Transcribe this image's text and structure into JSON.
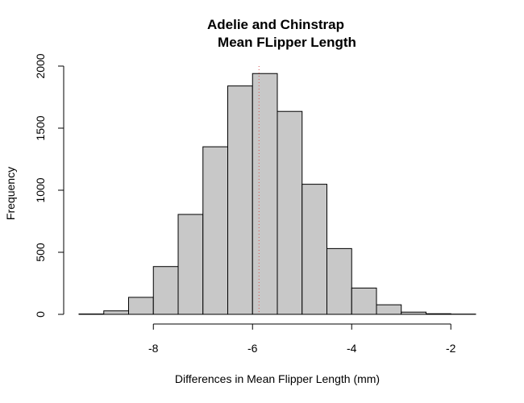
{
  "chart_data": {
    "type": "bar",
    "title_line1": "Adelie and Chinstrap",
    "title_line2": "Mean FLipper Length",
    "xlabel": "Differences in Mean Flipper Length (mm)",
    "ylabel": "Frequency",
    "bin_edges": [
      -9.5,
      -9.0,
      -8.5,
      -8.0,
      -7.5,
      -7.0,
      -6.5,
      -6.0,
      -5.5,
      -5.0,
      -4.5,
      -4.0,
      -3.5,
      -3.0,
      -2.5,
      -2.0,
      -1.5
    ],
    "values": [
      3,
      28,
      137,
      385,
      805,
      1350,
      1840,
      1940,
      1635,
      1048,
      530,
      212,
      77,
      18,
      5,
      2
    ],
    "xlim": [
      -9.5,
      -1.5
    ],
    "ylim": [
      0,
      2000
    ],
    "x_ticks": [
      -8,
      -6,
      -4,
      -2
    ],
    "y_ticks": [
      0,
      500,
      1000,
      1500,
      2000
    ],
    "x_tick_labels": [
      "-8",
      "-6",
      "-4",
      "-2"
    ],
    "y_tick_labels": [
      "0",
      "500",
      "1000",
      "1500",
      "2000"
    ],
    "mean_line_x": -5.87,
    "mean_line_color": "#d9534f",
    "bar_color": "#c8c8c8"
  }
}
